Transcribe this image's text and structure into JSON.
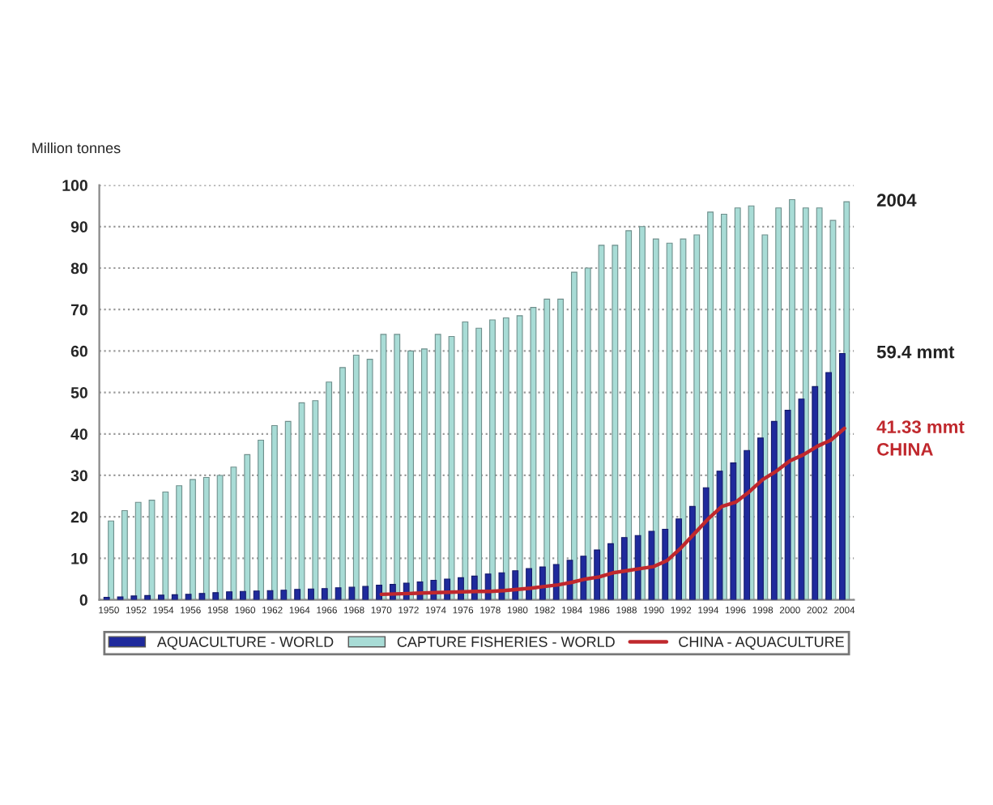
{
  "chart_data": {
    "type": "bar",
    "ylabel": "Million tonnes",
    "categories": [
      "1950",
      null,
      "1952",
      null,
      "1954",
      null,
      "1956",
      null,
      "1958",
      null,
      "1960",
      null,
      "1962",
      null,
      "1964",
      null,
      "1966",
      null,
      "1968",
      null,
      "1970",
      null,
      "1972",
      null,
      "1974",
      null,
      "1976",
      null,
      "1978",
      null,
      "1980",
      null,
      "1982",
      null,
      "1984",
      null,
      "1986",
      null,
      "1988",
      null,
      "1990",
      null,
      "1992",
      null,
      "1994",
      null,
      "1996",
      null,
      "1998",
      null,
      "2000",
      null,
      "2002",
      null,
      "2004"
    ],
    "series": [
      {
        "name": "AQUACULTURE - WORLD",
        "color": "#1f2a9c",
        "values": [
          0.6,
          0.7,
          0.9,
          1.0,
          1.1,
          1.2,
          1.3,
          1.5,
          1.7,
          1.9,
          2.0,
          2.1,
          2.2,
          2.3,
          2.5,
          2.6,
          2.7,
          2.9,
          3.0,
          3.2,
          3.5,
          3.7,
          4.0,
          4.3,
          4.7,
          5.0,
          5.3,
          5.7,
          6.2,
          6.5,
          7.0,
          7.5,
          7.9,
          8.5,
          9.5,
          10.5,
          12,
          13.5,
          15,
          15.5,
          16.5,
          17,
          19.5,
          22.5,
          27,
          31,
          33,
          36,
          39,
          43,
          45.7,
          48.4,
          51.4,
          54.8,
          59.4
        ]
      },
      {
        "name": "CAPTURE FISHERIES - WORLD",
        "color": "#a8dcd6",
        "values": [
          19,
          21.5,
          23.5,
          24,
          26,
          27.5,
          29,
          29.5,
          30,
          32,
          35,
          38.5,
          42,
          43,
          47.5,
          48,
          52.5,
          56,
          59,
          58,
          64,
          64,
          60,
          60.5,
          64,
          63.5,
          67,
          65.5,
          67.5,
          68,
          68.5,
          70.5,
          72.5,
          72.5,
          79,
          80,
          85.5,
          85.5,
          89,
          90,
          87,
          86,
          87,
          88,
          93.5,
          93,
          94.5,
          95,
          88,
          94.5,
          96.5,
          94.5,
          94.5,
          91.5,
          96
        ]
      },
      {
        "name": "CHINA - AQUACULTURE",
        "type": "line",
        "color": "#c0282d",
        "values": [
          null,
          null,
          null,
          null,
          null,
          null,
          null,
          null,
          null,
          null,
          null,
          null,
          null,
          null,
          null,
          null,
          null,
          null,
          null,
          null,
          1.3,
          1.4,
          1.5,
          1.6,
          1.7,
          1.8,
          1.9,
          2.0,
          2.0,
          2.2,
          2.5,
          2.8,
          3.2,
          3.6,
          4.2,
          5.0,
          5.5,
          6.5,
          7.0,
          7.5,
          8.0,
          9.5,
          12.5,
          16,
          19.5,
          22.5,
          23.5,
          26,
          29,
          31,
          33.5,
          35,
          37,
          38.5,
          41.33
        ]
      }
    ],
    "annotations": [
      {
        "text": "2004",
        "x": "2004",
        "y": 96
      },
      {
        "text": "59.4 mmt",
        "x": "2004",
        "y": 59.4
      },
      {
        "text": "41.33 mmt",
        "x": "2004",
        "y": 41.33
      },
      {
        "text": "CHINA",
        "x": "2004",
        "y": 41.33
      }
    ],
    "ylim": [
      0,
      100
    ],
    "yticks": [
      0,
      10,
      20,
      30,
      40,
      50,
      60,
      70,
      80,
      90,
      100
    ],
    "grid": "y",
    "legend": "bottom"
  }
}
